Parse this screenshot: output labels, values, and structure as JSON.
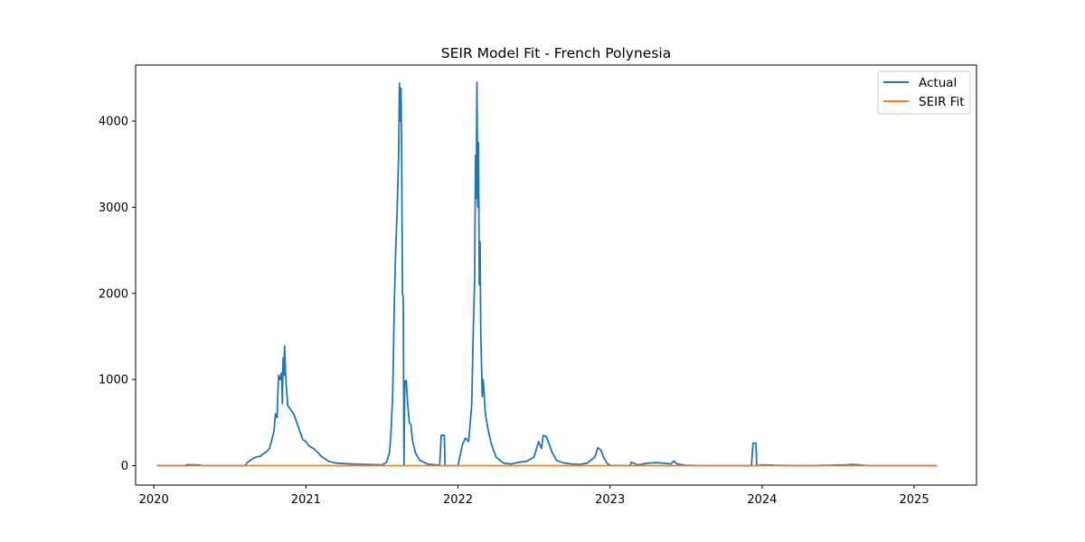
{
  "chart_data": {
    "type": "line",
    "title": "SEIR Model Fit - French Polynesia",
    "xlabel": "",
    "ylabel": "",
    "xlim": [
      2019.88,
      2025.41
    ],
    "ylim": [
      -225,
      4650
    ],
    "x_ticks": [
      {
        "value": 2020,
        "label": "2020"
      },
      {
        "value": 2021,
        "label": "2021"
      },
      {
        "value": 2022,
        "label": "2022"
      },
      {
        "value": 2023,
        "label": "2023"
      },
      {
        "value": 2024,
        "label": "2024"
      },
      {
        "value": 2025,
        "label": "2025"
      }
    ],
    "y_ticks": [
      {
        "value": 0,
        "label": "0"
      },
      {
        "value": 1000,
        "label": "1000"
      },
      {
        "value": 2000,
        "label": "2000"
      },
      {
        "value": 3000,
        "label": "3000"
      },
      {
        "value": 4000,
        "label": "4000"
      }
    ],
    "grid": false,
    "legend_position": "top-right",
    "series": [
      {
        "name": "Actual",
        "color": "#1f77b4",
        "points": [
          [
            2020.02,
            0
          ],
          [
            2020.2,
            0
          ],
          [
            2020.22,
            12
          ],
          [
            2020.3,
            8
          ],
          [
            2020.32,
            0
          ],
          [
            2020.6,
            0
          ],
          [
            2020.61,
            30
          ],
          [
            2020.64,
            70
          ],
          [
            2020.67,
            100
          ],
          [
            2020.7,
            110
          ],
          [
            2020.72,
            140
          ],
          [
            2020.74,
            160
          ],
          [
            2020.76,
            200
          ],
          [
            2020.78,
            330
          ],
          [
            2020.79,
            400
          ],
          [
            2020.8,
            600
          ],
          [
            2020.81,
            560
          ],
          [
            2020.82,
            1050
          ],
          [
            2020.83,
            1000
          ],
          [
            2020.84,
            1080
          ],
          [
            2020.845,
            720
          ],
          [
            2020.85,
            1250
          ],
          [
            2020.855,
            1050
          ],
          [
            2020.86,
            1390
          ],
          [
            2020.865,
            1100
          ],
          [
            2020.87,
            950
          ],
          [
            2020.88,
            700
          ],
          [
            2020.9,
            650
          ],
          [
            2020.92,
            600
          ],
          [
            2020.94,
            500
          ],
          [
            2020.96,
            400
          ],
          [
            2020.98,
            300
          ],
          [
            2021.0,
            280
          ],
          [
            2021.02,
            230
          ],
          [
            2021.05,
            200
          ],
          [
            2021.08,
            150
          ],
          [
            2021.1,
            110
          ],
          [
            2021.15,
            50
          ],
          [
            2021.2,
            30
          ],
          [
            2021.3,
            20
          ],
          [
            2021.4,
            15
          ],
          [
            2021.5,
            10
          ],
          [
            2021.53,
            40
          ],
          [
            2021.55,
            150
          ],
          [
            2021.56,
            400
          ],
          [
            2021.57,
            800
          ],
          [
            2021.575,
            1250
          ],
          [
            2021.58,
            1800
          ],
          [
            2021.59,
            2500
          ],
          [
            2021.6,
            3000
          ],
          [
            2021.61,
            3600
          ],
          [
            2021.615,
            4440
          ],
          [
            2021.62,
            4000
          ],
          [
            2021.625,
            4380
          ],
          [
            2021.63,
            3500
          ],
          [
            2021.635,
            2000
          ],
          [
            2021.64,
            1950
          ],
          [
            2021.645,
            0
          ],
          [
            2021.65,
            980
          ],
          [
            2021.66,
            990
          ],
          [
            2021.67,
            700
          ],
          [
            2021.68,
            500
          ],
          [
            2021.69,
            480
          ],
          [
            2021.7,
            300
          ],
          [
            2021.72,
            150
          ],
          [
            2021.75,
            60
          ],
          [
            2021.8,
            20
          ],
          [
            2021.88,
            5
          ],
          [
            2021.89,
            355
          ],
          [
            2021.91,
            350
          ],
          [
            2021.915,
            0
          ],
          [
            2022.0,
            0
          ],
          [
            2022.03,
            250
          ],
          [
            2022.05,
            320
          ],
          [
            2022.07,
            280
          ],
          [
            2022.09,
            700
          ],
          [
            2022.1,
            1500
          ],
          [
            2022.11,
            2200
          ],
          [
            2022.115,
            3600
          ],
          [
            2022.12,
            3100
          ],
          [
            2022.125,
            4450
          ],
          [
            2022.13,
            3000
          ],
          [
            2022.135,
            3750
          ],
          [
            2022.14,
            2100
          ],
          [
            2022.145,
            2600
          ],
          [
            2022.15,
            1500
          ],
          [
            2022.16,
            800
          ],
          [
            2022.165,
            1000
          ],
          [
            2022.17,
            900
          ],
          [
            2022.18,
            600
          ],
          [
            2022.2,
            400
          ],
          [
            2022.22,
            250
          ],
          [
            2022.25,
            100
          ],
          [
            2022.3,
            30
          ],
          [
            2022.35,
            20
          ],
          [
            2022.4,
            40
          ],
          [
            2022.45,
            50
          ],
          [
            2022.5,
            100
          ],
          [
            2022.53,
            280
          ],
          [
            2022.55,
            200
          ],
          [
            2022.56,
            350
          ],
          [
            2022.58,
            340
          ],
          [
            2022.6,
            250
          ],
          [
            2022.62,
            150
          ],
          [
            2022.65,
            60
          ],
          [
            2022.7,
            30
          ],
          [
            2022.75,
            20
          ],
          [
            2022.8,
            15
          ],
          [
            2022.85,
            30
          ],
          [
            2022.9,
            100
          ],
          [
            2022.92,
            210
          ],
          [
            2022.94,
            180
          ],
          [
            2022.96,
            90
          ],
          [
            2022.98,
            30
          ],
          [
            2023.0,
            5
          ],
          [
            2023.13,
            0
          ],
          [
            2023.14,
            40
          ],
          [
            2023.18,
            10
          ],
          [
            2023.25,
            30
          ],
          [
            2023.3,
            35
          ],
          [
            2023.35,
            30
          ],
          [
            2023.4,
            20
          ],
          [
            2023.42,
            55
          ],
          [
            2023.44,
            20
          ],
          [
            2023.5,
            5
          ],
          [
            2023.6,
            0
          ],
          [
            2023.93,
            0
          ],
          [
            2023.94,
            260
          ],
          [
            2023.96,
            260
          ],
          [
            2023.965,
            0
          ],
          [
            2024.0,
            10
          ],
          [
            2024.1,
            5
          ],
          [
            2024.3,
            0
          ],
          [
            2024.55,
            10
          ],
          [
            2024.6,
            15
          ],
          [
            2024.7,
            0
          ],
          [
            2025.15,
            0
          ]
        ]
      },
      {
        "name": "SEIR Fit",
        "color": "#ff7f0e",
        "points": [
          [
            2020.02,
            0
          ],
          [
            2025.15,
            0
          ]
        ]
      }
    ]
  }
}
